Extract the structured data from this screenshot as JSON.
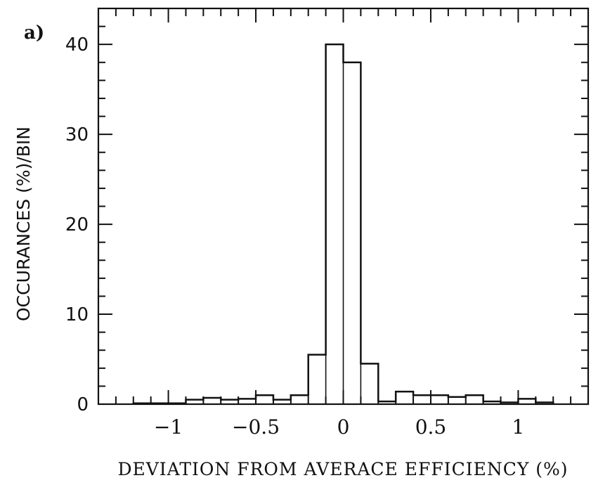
{
  "panel_label": "a)",
  "chart_data": {
    "type": "bar",
    "subtype": "step-histogram",
    "title": "",
    "xlabel": "DEVIATION FROM AVERACE EFFICIENCY (%)",
    "ylabel": "OCCURANCES (%)/BIN",
    "xlim": [
      -1.4,
      1.4
    ],
    "ylim": [
      0,
      44
    ],
    "xticks": [
      -1,
      -0.5,
      0,
      0.5,
      1
    ],
    "xtick_labels": [
      "−1",
      "−0.5",
      "0",
      "0.5",
      "1"
    ],
    "yticks": [
      0,
      10,
      20,
      30,
      40
    ],
    "ytick_labels": [
      "0",
      "10",
      "20",
      "30",
      "40"
    ],
    "grid": false,
    "bin_edges": [
      -1.2,
      -1.1,
      -1.0,
      -0.9,
      -0.8,
      -0.7,
      -0.6,
      -0.5,
      -0.4,
      -0.3,
      -0.2,
      -0.1,
      0.0,
      0.1,
      0.2,
      0.3,
      0.4,
      0.5,
      0.6,
      0.7,
      0.8,
      0.9,
      1.0,
      1.1,
      1.2
    ],
    "values": [
      0.1,
      0.1,
      0.1,
      0.5,
      0.7,
      0.5,
      0.6,
      1.0,
      0.5,
      1.0,
      5.5,
      40.0,
      38.0,
      4.5,
      0.3,
      1.4,
      1.0,
      1.0,
      0.8,
      1.0,
      0.3,
      0.2,
      0.6,
      0.2
    ],
    "line_color": "#111111"
  }
}
